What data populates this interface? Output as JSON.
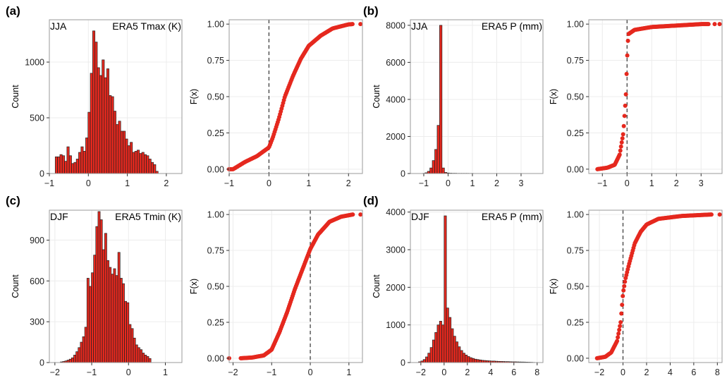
{
  "figure": {
    "panel_labels": [
      "(a)",
      "(b)",
      "(c)",
      "(d)"
    ],
    "bar_color": "#e8281e",
    "bar_edge": "#222222",
    "point_color": "#e5281e",
    "grid_color": "#ececec",
    "border_color": "#9a9a9a"
  },
  "chart_data": [
    {
      "type": "bar",
      "panel": "(a)",
      "season": "JJA",
      "title": "ERA5 Tmax (K)",
      "ylabel": "Count",
      "xlim": [
        -1.0,
        2.4
      ],
      "ylim": [
        0,
        1380
      ],
      "x_ticks": [
        -1,
        0,
        1,
        2
      ],
      "y_ticks": [
        0,
        500,
        1000
      ],
      "bins": {
        "start": -0.85,
        "width": 0.06,
        "counts": [
          150,
          150,
          170,
          160,
          110,
          240,
          160,
          90,
          100,
          130,
          190,
          240,
          200,
          320,
          550,
          900,
          1280,
          1180,
          950,
          880,
          1020,
          860,
          940,
          700,
          690,
          560,
          440,
          470,
          380,
          380,
          310,
          250,
          280,
          190,
          200,
          210,
          180,
          190,
          170,
          160,
          130,
          100,
          80,
          20
        ]
      }
    },
    {
      "type": "scatter",
      "panel": "(a)",
      "ylabel": "F(x)",
      "xlim": [
        -1.0,
        2.35
      ],
      "ylim": [
        -0.03,
        1.03
      ],
      "x_ticks": [
        -1,
        0,
        1,
        2
      ],
      "y_ticks": [
        0.0,
        0.25,
        0.5,
        0.75,
        1.0
      ],
      "vline": 0,
      "cdf": [
        [
          -1.0,
          0.0
        ],
        [
          -0.9,
          0.0
        ],
        [
          -0.6,
          0.05
        ],
        [
          -0.3,
          0.09
        ],
        [
          0.0,
          0.15
        ],
        [
          0.1,
          0.22
        ],
        [
          0.25,
          0.35
        ],
        [
          0.4,
          0.5
        ],
        [
          0.6,
          0.64
        ],
        [
          0.8,
          0.76
        ],
        [
          1.0,
          0.85
        ],
        [
          1.3,
          0.92
        ],
        [
          1.6,
          0.97
        ],
        [
          2.0,
          0.998
        ],
        [
          2.1,
          1.0
        ]
      ],
      "outliers": [
        [
          -1.0,
          0.0
        ],
        [
          2.3,
          1.0
        ]
      ]
    },
    {
      "type": "bar",
      "panel": "(b)",
      "season": "JJA",
      "title": "ERA5 P (mm)",
      "ylabel": "Count",
      "xlim": [
        -1.55,
        3.9
      ],
      "ylim": [
        0,
        8300
      ],
      "x_ticks": [
        -1,
        0,
        1,
        2,
        3
      ],
      "y_ticks": [
        0,
        2000,
        4000,
        6000,
        8000
      ],
      "bins": {
        "start": -1.05,
        "width": 0.1,
        "counts": [
          10,
          40,
          120,
          300,
          700,
          1300,
          2600,
          8000,
          300,
          60,
          30,
          20,
          15,
          15,
          10,
          10,
          10,
          10,
          10,
          8,
          8,
          6,
          6,
          5,
          5,
          5,
          4,
          4,
          4,
          3,
          3,
          3,
          3,
          3,
          2,
          2,
          2,
          2,
          2,
          2,
          2,
          2,
          2,
          2,
          2,
          2
        ]
      }
    },
    {
      "type": "scatter",
      "panel": "(b)",
      "ylabel": "F(x)",
      "xlim": [
        -1.55,
        3.85
      ],
      "ylim": [
        -0.03,
        1.03
      ],
      "x_ticks": [
        -1,
        0,
        1,
        2,
        3
      ],
      "y_ticks": [
        0.0,
        0.25,
        0.5,
        0.75,
        1.0
      ],
      "vline": 0,
      "cdf": [
        [
          -1.2,
          0.0
        ],
        [
          -0.8,
          0.01
        ],
        [
          -0.5,
          0.03
        ],
        [
          -0.3,
          0.1
        ],
        [
          -0.15,
          0.25
        ],
        [
          -0.05,
          0.5
        ],
        [
          0.0,
          0.75
        ],
        [
          0.05,
          0.93
        ],
        [
          0.3,
          0.96
        ],
        [
          1.0,
          0.98
        ],
        [
          2.0,
          0.99
        ],
        [
          3.0,
          1.0
        ],
        [
          3.3,
          1.0
        ]
      ],
      "outliers": [
        [
          3.55,
          1.0
        ],
        [
          3.75,
          1.0
        ]
      ]
    },
    {
      "type": "bar",
      "panel": "(c)",
      "season": "DJF",
      "title": "ERA5 Tmin (K)",
      "ylabel": "Count",
      "xlim": [
        -2.15,
        1.45
      ],
      "ylim": [
        0,
        1120
      ],
      "x_ticks": [
        -2,
        -1,
        0,
        1
      ],
      "y_ticks": [
        0,
        300,
        600,
        900
      ],
      "bins": {
        "start": -1.85,
        "width": 0.06,
        "counts": [
          5,
          8,
          12,
          18,
          25,
          35,
          55,
          80,
          110,
          150,
          190,
          260,
          620,
          560,
          660,
          790,
          1000,
          1110,
          1050,
          830,
          950,
          750,
          700,
          650,
          690,
          640,
          810,
          620,
          580,
          450,
          440,
          280,
          250,
          180,
          130,
          110,
          95,
          70,
          55,
          45,
          30
        ]
      }
    },
    {
      "type": "scatter",
      "panel": "(c)",
      "ylabel": "F(x)",
      "xlim": [
        -2.1,
        1.35
      ],
      "ylim": [
        -0.03,
        1.03
      ],
      "x_ticks": [
        -2,
        -1,
        0,
        1
      ],
      "y_ticks": [
        0.0,
        0.25,
        0.5,
        0.75,
        1.0
      ],
      "vline": 0,
      "cdf": [
        [
          -1.8,
          0.0
        ],
        [
          -1.5,
          0.005
        ],
        [
          -1.2,
          0.02
        ],
        [
          -1.0,
          0.06
        ],
        [
          -0.8,
          0.18
        ],
        [
          -0.6,
          0.32
        ],
        [
          -0.4,
          0.48
        ],
        [
          -0.2,
          0.62
        ],
        [
          0.0,
          0.76
        ],
        [
          0.2,
          0.86
        ],
        [
          0.5,
          0.95
        ],
        [
          0.8,
          0.985
        ],
        [
          1.1,
          1.0
        ]
      ],
      "outliers": [
        [
          -2.1,
          0.0
        ],
        [
          1.3,
          1.0
        ]
      ]
    },
    {
      "type": "bar",
      "panel": "(d)",
      "season": "DJF",
      "title": "ERA5 P (mm)",
      "ylabel": "Count",
      "xlim": [
        -2.9,
        8.5
      ],
      "ylim": [
        0,
        4050
      ],
      "x_ticks": [
        -2,
        0,
        2,
        4,
        6,
        8
      ],
      "y_ticks": [
        0,
        1000,
        2000,
        3000,
        4000
      ],
      "bins": {
        "start": -2.2,
        "width": 0.2,
        "counts": [
          20,
          40,
          80,
          150,
          250,
          400,
          600,
          800,
          1000,
          1100,
          1000,
          3900,
          1450,
          1200,
          900,
          700,
          550,
          420,
          320,
          250,
          200,
          160,
          130,
          110,
          90,
          80,
          70,
          60,
          55,
          50,
          45,
          40,
          40,
          35,
          32,
          30,
          28,
          25,
          25,
          22,
          20,
          20,
          18,
          16,
          15,
          14,
          12,
          10,
          8,
          5
        ]
      }
    },
    {
      "type": "scatter",
      "panel": "(d)",
      "ylabel": "F(x)",
      "xlim": [
        -2.9,
        8.4
      ],
      "ylim": [
        -0.03,
        1.03
      ],
      "x_ticks": [
        -2,
        0,
        2,
        4,
        6,
        8
      ],
      "y_ticks": [
        0.0,
        0.25,
        0.5,
        0.75,
        1.0
      ],
      "vline": 0,
      "cdf": [
        [
          -2.2,
          0.0
        ],
        [
          -1.5,
          0.01
        ],
        [
          -1.0,
          0.04
        ],
        [
          -0.5,
          0.12
        ],
        [
          -0.2,
          0.25
        ],
        [
          0.0,
          0.45
        ],
        [
          0.2,
          0.55
        ],
        [
          0.5,
          0.65
        ],
        [
          1.0,
          0.8
        ],
        [
          1.5,
          0.88
        ],
        [
          2.0,
          0.93
        ],
        [
          3.0,
          0.97
        ],
        [
          5.0,
          0.99
        ],
        [
          7.5,
          1.0
        ]
      ],
      "outliers": [
        [
          8.2,
          1.0
        ]
      ]
    }
  ]
}
